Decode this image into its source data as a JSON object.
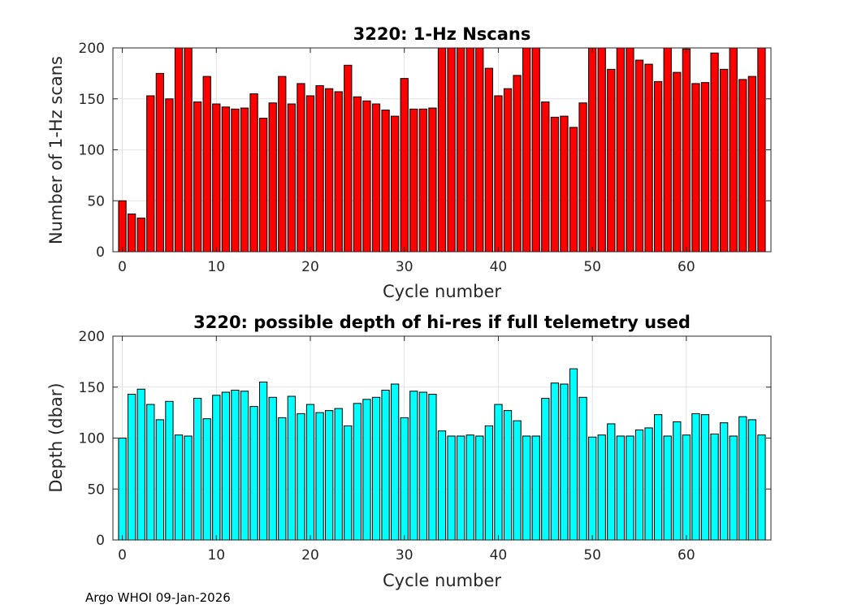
{
  "chart_data": [
    {
      "type": "bar",
      "title": "3220: 1-Hz Nscans",
      "xlabel": "Cycle number",
      "ylabel": "Number of 1-Hz scans",
      "bar_color": "#ff0000",
      "xlim": [
        -1,
        69
      ],
      "ylim": [
        0,
        200
      ],
      "xticks": [
        0,
        10,
        20,
        30,
        40,
        50,
        60
      ],
      "yticks": [
        0,
        50,
        100,
        150,
        200
      ],
      "grid": true,
      "x": [
        0,
        1,
        2,
        3,
        4,
        5,
        6,
        7,
        8,
        9,
        10,
        11,
        12,
        13,
        14,
        15,
        16,
        17,
        18,
        19,
        20,
        21,
        22,
        23,
        24,
        25,
        26,
        27,
        28,
        29,
        30,
        31,
        32,
        33,
        34,
        35,
        36,
        37,
        38,
        39,
        40,
        41,
        42,
        43,
        44,
        45,
        46,
        47,
        48,
        49,
        50,
        51,
        52,
        53,
        54,
        55,
        56,
        57,
        58,
        59,
        60,
        61,
        62,
        63,
        64,
        65,
        66,
        67,
        68
      ],
      "values": [
        50,
        37,
        33,
        153,
        175,
        150,
        200,
        200,
        147,
        172,
        145,
        142,
        140,
        141,
        155,
        131,
        146,
        172,
        145,
        165,
        153,
        163,
        160,
        157,
        183,
        152,
        148,
        145,
        139,
        133,
        170,
        140,
        140,
        141,
        200,
        200,
        200,
        200,
        200,
        180,
        153,
        160,
        173,
        200,
        200,
        147,
        132,
        133,
        122,
        146,
        200,
        200,
        179,
        200,
        200,
        188,
        184,
        167,
        200,
        176,
        199,
        165,
        166,
        195,
        179,
        200,
        169,
        172,
        200
      ]
    },
    {
      "type": "bar",
      "title": "3220: possible depth of hi-res if full telemetry used",
      "xlabel": "Cycle number",
      "ylabel": "Depth (dbar)",
      "bar_color": "#00ffff",
      "xlim": [
        -1,
        69
      ],
      "ylim": [
        0,
        200
      ],
      "xticks": [
        0,
        10,
        20,
        30,
        40,
        50,
        60
      ],
      "yticks": [
        0,
        50,
        100,
        150,
        200
      ],
      "grid": true,
      "x": [
        0,
        1,
        2,
        3,
        4,
        5,
        6,
        7,
        8,
        9,
        10,
        11,
        12,
        13,
        14,
        15,
        16,
        17,
        18,
        19,
        20,
        21,
        22,
        23,
        24,
        25,
        26,
        27,
        28,
        29,
        30,
        31,
        32,
        33,
        34,
        35,
        36,
        37,
        38,
        39,
        40,
        41,
        42,
        43,
        44,
        45,
        46,
        47,
        48,
        49,
        50,
        51,
        52,
        53,
        54,
        55,
        56,
        57,
        58,
        59,
        60,
        61,
        62,
        63,
        64,
        65,
        66,
        67,
        68
      ],
      "values": [
        100,
        143,
        148,
        133,
        118,
        136,
        103,
        102,
        139,
        119,
        142,
        145,
        147,
        146,
        131,
        155,
        140,
        120,
        141,
        124,
        133,
        125,
        127,
        129,
        112,
        134,
        138,
        140,
        147,
        153,
        120,
        146,
        145,
        143,
        107,
        102,
        102,
        103,
        102,
        112,
        133,
        127,
        117,
        102,
        102,
        139,
        154,
        153,
        168,
        140,
        101,
        103,
        114,
        102,
        102,
        108,
        110,
        123,
        102,
        116,
        103,
        124,
        123,
        104,
        115,
        102,
        121,
        118,
        103
      ]
    }
  ],
  "footer": {
    "text": "Argo WHOI 09-Jan-2026"
  }
}
